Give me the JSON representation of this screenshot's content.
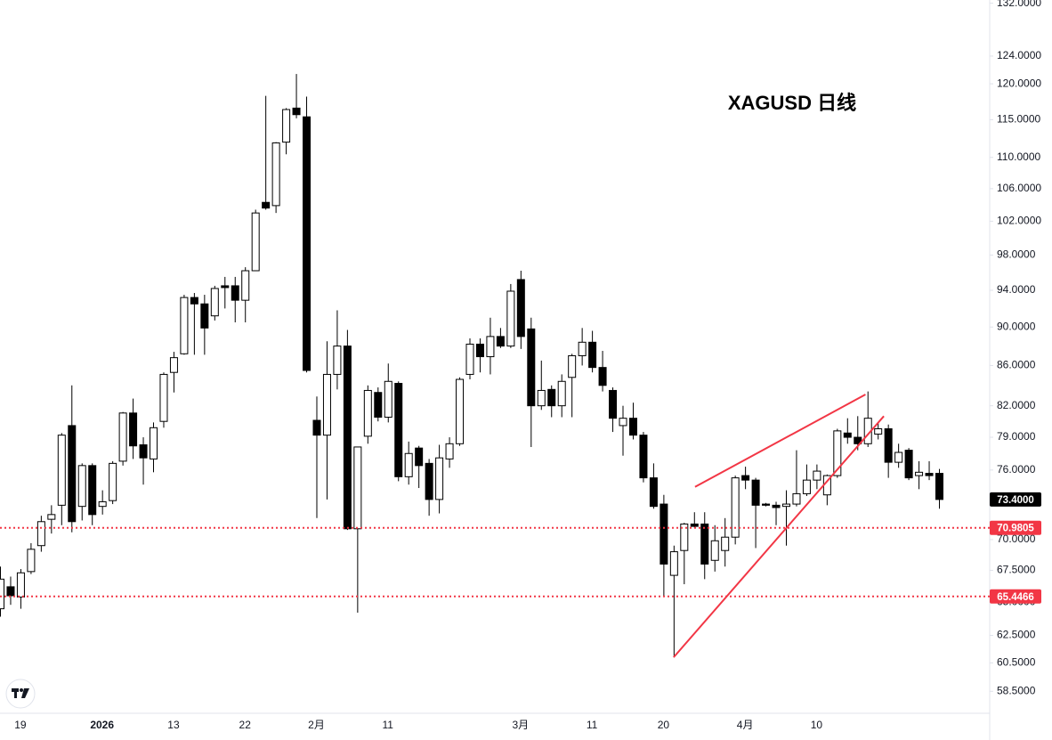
{
  "chart_data": {
    "type": "candlestick",
    "title": "XAGUSD 日线",
    "categories": [
      null,
      null,
      "19",
      null,
      null,
      null,
      null,
      null,
      null,
      null,
      "2026",
      null,
      null,
      null,
      null,
      null,
      null,
      "13",
      null,
      null,
      null,
      null,
      null,
      null,
      "22",
      null,
      null,
      null,
      null,
      null,
      null,
      "2月",
      null,
      null,
      null,
      null,
      null,
      null,
      "11",
      null,
      null,
      null,
      null,
      null,
      null,
      null,
      null,
      null,
      null,
      null,
      null,
      "3月",
      null,
      null,
      null,
      null,
      null,
      null,
      "11",
      null,
      null,
      null,
      null,
      null,
      null,
      "20",
      null,
      null,
      null,
      null,
      null,
      null,
      null,
      "4月",
      null,
      null,
      null,
      null,
      null,
      null,
      "10",
      null,
      null,
      null,
      null,
      null,
      null,
      null,
      null,
      null,
      null,
      null,
      null
    ],
    "open": [
      64.5,
      66.2,
      65.4,
      67.4,
      69.5,
      71.7,
      72.9,
      80.1,
      72.8,
      76.4,
      72.8,
      73.3,
      76.8,
      81.3,
      78.3,
      77.0,
      80.5,
      85.3,
      87.2,
      93.2,
      92.5,
      91.2,
      94.5,
      94.5,
      92.9,
      96.2,
      104.3,
      103.9,
      112.0,
      116.6,
      115.4,
      80.6,
      79.2,
      85.1,
      88.0,
      70.9,
      79.1,
      83.3,
      80.9,
      84.2,
      75.4,
      78.0,
      76.6,
      73.4,
      77.0,
      78.4,
      85.1,
      88.2,
      86.9,
      89.0,
      88.0,
      95.2,
      89.8,
      82.0,
      83.6,
      82.0,
      84.8,
      87.0,
      88.4,
      85.8,
      83.5,
      80.1,
      80.8,
      79.2,
      75.3,
      73.0,
      67.1,
      69.1,
      71.3,
      71.3,
      68.3,
      69.1,
      70.2,
      75.5,
      75.1,
      73.0,
      72.9,
      72.8,
      73.0,
      73.9,
      75.1,
      73.8,
      75.5,
      79.4,
      79.0,
      78.4,
      79.3,
      79.8,
      76.7,
      77.8,
      75.5,
      75.7,
      75.7
    ],
    "high": [
      67.8,
      67.0,
      67.6,
      69.7,
      72.0,
      72.9,
      79.4,
      84.0,
      76.6,
      76.6,
      74.2,
      76.8,
      81.4,
      82.7,
      79.0,
      80.4,
      85.3,
      87.4,
      93.5,
      93.7,
      93.5,
      94.5,
      95.5,
      95.5,
      96.6,
      103.4,
      118.3,
      112.0,
      116.6,
      121.4,
      118.2,
      82.9,
      88.5,
      91.8,
      89.7,
      78.1,
      84.0,
      83.8,
      86.2,
      84.4,
      78.6,
      78.2,
      77.0,
      78.3,
      79.0,
      84.8,
      88.8,
      88.8,
      91.0,
      89.9,
      94.7,
      96.2,
      91.0,
      86.5,
      84.0,
      85.1,
      87.2,
      89.9,
      89.6,
      87.5,
      83.8,
      82.0,
      82.3,
      79.5,
      76.6,
      73.8,
      69.5,
      71.4,
      72.3,
      72.3,
      71.2,
      71.8,
      75.5,
      76.3,
      75.3,
      73.1,
      73.2,
      74.2,
      77.8,
      76.5,
      76.5,
      75.6,
      79.8,
      80.8,
      81.0,
      83.4,
      80.4,
      80.2,
      78.4,
      78.0,
      76.8,
      76.8,
      76.1
    ],
    "low": [
      63.9,
      64.8,
      64.5,
      67.2,
      69.0,
      70.5,
      71.2,
      70.6,
      71.6,
      71.2,
      72.1,
      73.0,
      76.4,
      77.0,
      74.7,
      75.8,
      79.9,
      83.3,
      87.1,
      87.1,
      87.1,
      90.7,
      92.0,
      90.5,
      90.5,
      96.2,
      103.4,
      103.0,
      110.4,
      115.2,
      85.3,
      71.8,
      73.4,
      83.6,
      70.8,
      64.2,
      78.4,
      80.5,
      80.4,
      75.0,
      74.7,
      74.4,
      72.0,
      72.2,
      76.2,
      78.2,
      84.6,
      85.3,
      85.1,
      87.8,
      87.8,
      87.7,
      78.1,
      81.6,
      80.9,
      80.9,
      80.9,
      86.0,
      85.3,
      83.4,
      79.5,
      77.3,
      78.8,
      74.9,
      72.6,
      65.5,
      60.9,
      66.4,
      71.0,
      66.8,
      67.4,
      67.8,
      69.6,
      74.3,
      69.3,
      72.8,
      71.2,
      69.5,
      72.8,
      73.7,
      74.3,
      72.9,
      75.3,
      78.4,
      77.8,
      78.1,
      78.8,
      75.3,
      76.2,
      75.1,
      74.3,
      75.1,
      72.6
    ],
    "close": [
      66.8,
      65.5,
      67.3,
      69.2,
      71.5,
      72.1,
      79.2,
      71.5,
      76.4,
      72.1,
      73.2,
      76.6,
      81.3,
      78.2,
      77.1,
      79.9,
      85.1,
      86.8,
      93.2,
      92.5,
      89.9,
      94.2,
      94.3,
      92.9,
      96.2,
      103.0,
      103.6,
      111.9,
      116.4,
      115.7,
      85.5,
      79.2,
      85.1,
      88.0,
      70.9,
      78.1,
      83.5,
      80.9,
      84.4,
      75.4,
      77.5,
      76.4,
      73.4,
      77.1,
      78.4,
      84.6,
      88.2,
      86.9,
      89.0,
      88.0,
      93.9,
      89.0,
      82.0,
      83.5,
      82.0,
      84.4,
      87.0,
      88.4,
      85.8,
      84.0,
      80.8,
      80.8,
      79.2,
      75.3,
      72.8,
      68.0,
      69.0,
      71.3,
      71.1,
      68.0,
      69.9,
      70.2,
      75.3,
      75.1,
      72.9,
      72.9,
      72.7,
      73.0,
      73.9,
      75.1,
      75.9,
      75.5,
      79.6,
      79.0,
      78.4,
      80.8,
      79.8,
      76.7,
      77.6,
      75.3,
      75.8,
      75.5,
      73.4
    ],
    "up_color": "#ffffff",
    "down_color": "#000000",
    "wick_color": "#000000",
    "log_scale": true,
    "grid": false,
    "ylim": [
      57,
      132.5
    ],
    "yticks": [
      {
        "value": 132,
        "label": "132.0000"
      },
      {
        "value": 124,
        "label": "124.0000"
      },
      {
        "value": 120,
        "label": "120.0000"
      },
      {
        "value": 115,
        "label": "115.0000"
      },
      {
        "value": 110,
        "label": "110.0000"
      },
      {
        "value": 106,
        "label": "106.0000"
      },
      {
        "value": 102,
        "label": "102.0000"
      },
      {
        "value": 98,
        "label": "98.0000"
      },
      {
        "value": 94,
        "label": "94.0000"
      },
      {
        "value": 90,
        "label": "90.0000"
      },
      {
        "value": 86,
        "label": "86.0000"
      },
      {
        "value": 82,
        "label": "82.0000"
      },
      {
        "value": 79,
        "label": "79.0000"
      },
      {
        "value": 76,
        "label": "76.0000"
      },
      {
        "value": 70,
        "label": "70.0000"
      },
      {
        "value": 67.5,
        "label": "67.5000"
      },
      {
        "value": 65,
        "label": "65.0000"
      },
      {
        "value": 62.5,
        "label": "62.5000"
      },
      {
        "value": 60.5,
        "label": "60.5000"
      },
      {
        "value": 58.5,
        "label": "58.5000"
      }
    ],
    "last_price": {
      "value": 73.4,
      "label": "73.4000",
      "color": "#000000"
    },
    "price_lines": [
      {
        "value": 70.9805,
        "color": "#f23645"
      },
      {
        "value": 65.4466,
        "color": "#f23645"
      }
    ],
    "trend_lines": [
      {
        "x": [
          68.1,
          84.8
        ],
        "y": [
          74.5,
          83.1
        ],
        "color": "#f23645"
      },
      {
        "x": [
          66.0,
          86.6
        ],
        "y": [
          60.9,
          81.0
        ],
        "color": "#f23645"
      }
    ]
  }
}
